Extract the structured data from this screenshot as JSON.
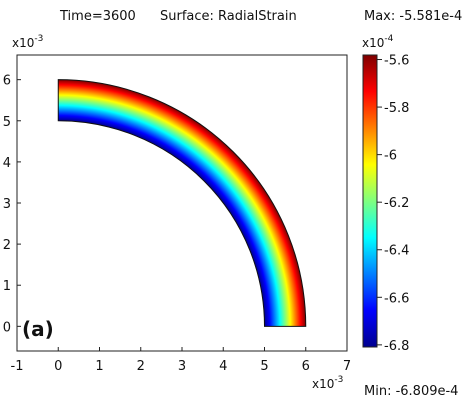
{
  "header": {
    "time_label": "Time=3600",
    "surface_label": "Surface: RadialStrain",
    "max_label": "Max: -5.581e-4",
    "min_label": "Min: -6.809e-4"
  },
  "panel_label": "(a)",
  "chart_data": {
    "type": "heatmap",
    "title": "Surface: RadialStrain",
    "xlabel": "",
    "ylabel": "",
    "x_multiplier": "x10^-3",
    "y_multiplier": "x10^-3",
    "xlim": [
      -1,
      7
    ],
    "ylim": [
      -0.6,
      6.6
    ],
    "x_ticks": [
      -1,
      0,
      1,
      2,
      3,
      4,
      5,
      6,
      7
    ],
    "y_ticks": [
      0,
      1,
      2,
      3,
      4,
      5,
      6
    ],
    "grid": false,
    "geometry": {
      "shape": "quarter annulus",
      "center": [
        0,
        0
      ],
      "inner_radius": 5,
      "outer_radius": 6,
      "angle_range_deg": [
        0,
        90
      ],
      "units": "x10^-3"
    },
    "field": {
      "name": "RadialStrain",
      "min": -0.0006809,
      "max": -0.0005581,
      "gradient": "increases from inner radius to outer radius"
    },
    "colorbar": {
      "multiplier": "x10^-4",
      "ticks": [
        -5.6,
        -5.8,
        -6,
        -6.2,
        -6.4,
        -6.6,
        -6.8
      ],
      "range": [
        -6.809,
        -5.581
      ],
      "colormap": "jet"
    },
    "colormap_stops": [
      "#00008f",
      "#0000ff",
      "#007fff",
      "#00ffff",
      "#7fff7f",
      "#ffff00",
      "#ff7f00",
      "#ff0000",
      "#7f0000"
    ]
  }
}
